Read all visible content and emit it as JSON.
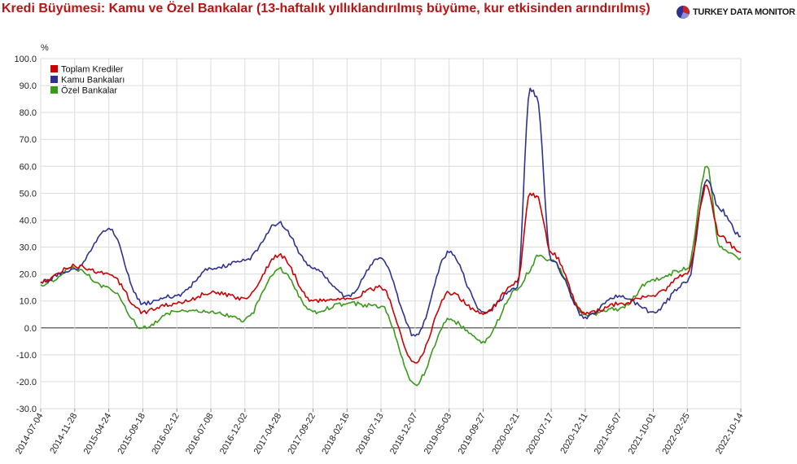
{
  "title": "Kredi Büyümesi: Kamu ve Özel Bankalar (13-haftalık yıllıklandırılmış büyüme, kur etkisinden arındırılmış)",
  "brand": "TURKEY DATA MONITOR",
  "colors": {
    "title": "#b81414",
    "toplam": "#cc0000",
    "kamu": "#2e3192",
    "ozel": "#3a9a1a"
  },
  "chart_data": {
    "type": "line",
    "title": "Kredi Büyümesi: Kamu ve Özel Bankalar (13-haftalık yıllıklandırılmış büyüme, kur etkisinden arındırılmış)",
    "xlabel": "",
    "ylabel": "%",
    "ylim": [
      -30,
      100
    ],
    "yticks": [
      "100.0",
      "90.0",
      "80.0",
      "70.0",
      "60.0",
      "50.0",
      "40.0",
      "30.0",
      "20.0",
      "10.0",
      "0.0",
      "-10.0",
      "-20.0",
      "-30.0"
    ],
    "xticks": [
      "2014-07-04",
      "2014-11-28",
      "2015-04-24",
      "2015-09-18",
      "2016-02-12",
      "2016-07-08",
      "2016-12-02",
      "2017-04-28",
      "2017-09-22",
      "2018-02-16",
      "2018-07-13",
      "2018-12-07",
      "2019-05-03",
      "2019-09-27",
      "2020-02-21",
      "2020-07-17",
      "2020-12-11",
      "2021-05-07",
      "2021-10-01",
      "2022-02-25",
      "2022-10-14"
    ],
    "x": [
      "2014-07-04",
      "2014-11-28",
      "2015-04-24",
      "2015-09-18",
      "2016-02-12",
      "2016-07-08",
      "2016-12-02",
      "2017-04-28",
      "2017-09-22",
      "2018-02-16",
      "2018-07-13",
      "2018-12-07",
      "2019-05-03",
      "2019-09-27",
      "2020-02-21",
      "2020-04-17",
      "2020-05-15",
      "2020-07-17",
      "2020-12-11",
      "2021-05-07",
      "2021-10-01",
      "2022-02-25",
      "2022-05-20",
      "2022-07-15",
      "2022-10-14"
    ],
    "legend_position": "top-left",
    "grid": true,
    "series": [
      {
        "name": "Toplam Krediler",
        "color": "#cc0000",
        "values": [
          17,
          23,
          20,
          6,
          9,
          13,
          11,
          27,
          10,
          11,
          15,
          -13,
          13,
          5,
          17,
          50,
          49,
          28,
          5,
          9,
          12,
          20,
          53,
          34,
          28
        ]
      },
      {
        "name": "Kamu Bankaları",
        "color": "#2e3192",
        "values": [
          17,
          22,
          37,
          9,
          12,
          22,
          25,
          39,
          22,
          12,
          26,
          -3,
          28,
          6,
          15,
          89,
          86,
          25,
          4,
          12,
          6,
          17,
          55,
          44,
          34
        ]
      },
      {
        "name": "Özel Bankalar",
        "color": "#3a9a1a",
        "values": [
          16,
          22,
          15,
          0,
          6,
          6,
          3,
          22,
          6,
          9,
          8,
          -21,
          3,
          -5,
          14,
          21,
          27,
          25,
          5,
          7,
          18,
          22,
          60,
          30,
          26
        ]
      }
    ]
  }
}
